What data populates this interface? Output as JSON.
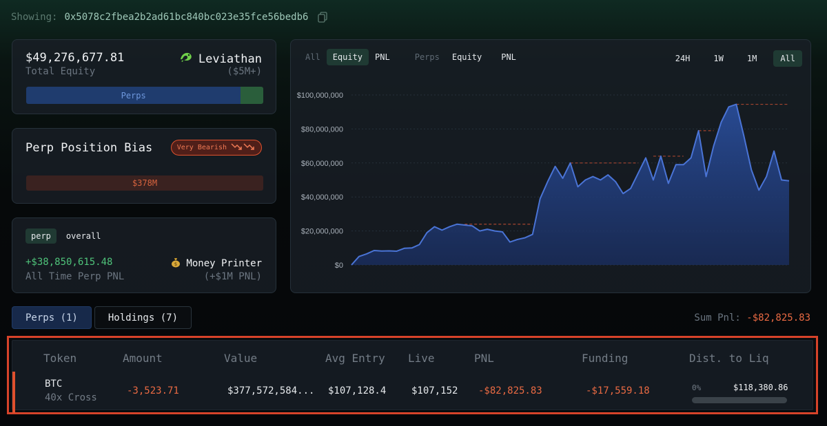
{
  "header": {
    "showing_label": "Showing:",
    "address": "0x5078c2fbea2b2ad61bc840bc023e35fce56bedb6"
  },
  "equity_card": {
    "value": "$49,276,677.81",
    "label": "Total Equity",
    "tier_name": "Leviathan",
    "tier_range": "($5M+)",
    "bar_label": "Perps",
    "perps_share": 0.905
  },
  "bias_card": {
    "title": "Perp Position Bias",
    "badge": "Very Bearish",
    "bar_value": "$378M"
  },
  "pnl_card": {
    "seg_perp": "perp",
    "seg_overall": "overall",
    "value": "+$38,850,615.48",
    "label": "All Time Perp PNL",
    "tier_name": "Money Printer",
    "tier_range": "(+$1M PNL)"
  },
  "chart_tabs": {
    "all": "All",
    "equity": "Equity",
    "pnl": "PNL",
    "perps": "Perps",
    "perps_equity": "Equity",
    "perps_pnl": "PNL",
    "range_24h": "24H",
    "range_1w": "1W",
    "range_1m": "1M",
    "range_all": "All"
  },
  "chart_data": {
    "type": "area",
    "title": "",
    "ylim": [
      0,
      100000000
    ],
    "yticks": [
      "$100,000,000",
      "$80,000,000",
      "$60,000,000",
      "$40,000,000",
      "$20,000,000",
      "$0"
    ],
    "series": [
      {
        "values": [
          0,
          5000000,
          6500000,
          8500000,
          8200000,
          8300000,
          8100000,
          9800000,
          10000000,
          12000000,
          19000000,
          22500000,
          20500000,
          22500000,
          24000000,
          23500000,
          23000000,
          20000000,
          21000000,
          20000000,
          19500000,
          13500000,
          15000000,
          16000000,
          18000000,
          39000000,
          49000000,
          58000000,
          51000000,
          60000000,
          46000000,
          50000000,
          52000000,
          50000000,
          53000000,
          49000000,
          42000000,
          45000000,
          54000000,
          63000000,
          50000000,
          64000000,
          48000000,
          59000000,
          59000000,
          63000000,
          79000000,
          52000000,
          70000000,
          84000000,
          93000000,
          94500000,
          76000000,
          56000000,
          44000000,
          52000000,
          67000000,
          50000000,
          49500000
        ]
      }
    ],
    "peak_steps": [
      {
        "from": 15,
        "to": 24,
        "value": 24000000
      },
      {
        "from": 29,
        "to": 38,
        "value": 60000000
      },
      {
        "from": 40,
        "to": 44,
        "value": 64000000
      },
      {
        "from": 46,
        "to": 48,
        "value": 79000000
      },
      {
        "from": 51,
        "to": 58,
        "value": 94500000
      }
    ],
    "grid": true
  },
  "position_tabs": {
    "perps": "Perps (1)",
    "holdings": "Holdings (7)"
  },
  "sum_pnl": {
    "label": "Sum Pnl:",
    "value": "-$82,825.83"
  },
  "table": {
    "headers": [
      "Token",
      "Amount",
      "Value",
      "Avg Entry",
      "Live",
      "PNL",
      "Funding",
      "Dist. to Liq"
    ],
    "row": {
      "token": "BTC",
      "leverage": "40x Cross",
      "amount": "-3,523.71",
      "value": "$377,572,584...",
      "avg_entry": "$107,128.4",
      "live": "$107,152",
      "pnl": "-$82,825.83",
      "funding": "-$17,559.18",
      "liq_pct": "0%",
      "liq_price": "$118,380.86"
    }
  },
  "colors": {
    "accent_green": "#4fc37a",
    "negative": "#ea6a43",
    "line_blue": "#4a74d6"
  }
}
